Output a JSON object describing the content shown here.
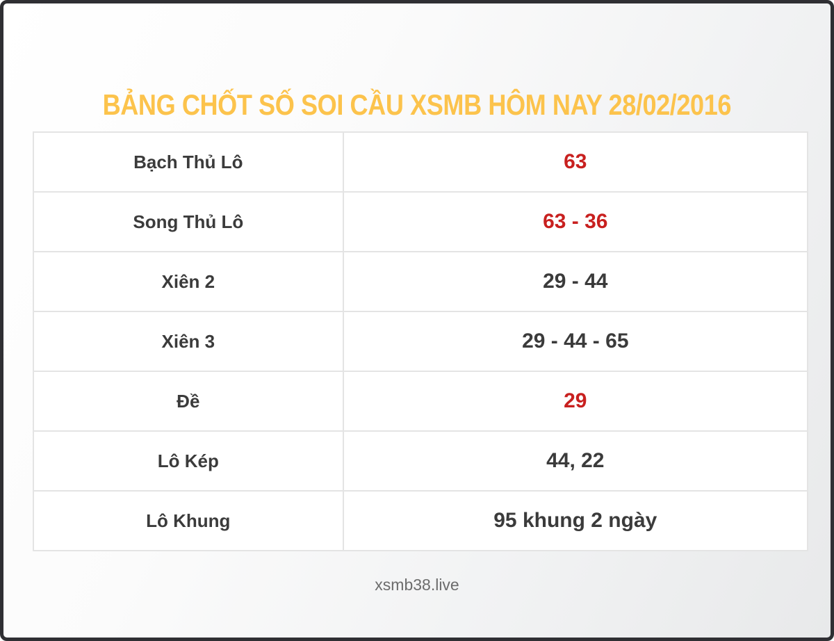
{
  "page": {
    "title": "BẢNG CHỐT SỐ SOI CẦU XSMB HÔM NAY 28/02/2016",
    "footer": "xsmb38.live"
  },
  "colors": {
    "title": "#fcc34c",
    "value_highlight": "#c8201f",
    "text_dark": "#3b3b3b",
    "table_border": "#e4e4e4",
    "frame_border": "#2f2f33"
  },
  "table": {
    "rows": [
      {
        "label": "Bạch Thủ Lô",
        "value": "63",
        "highlight": true
      },
      {
        "label": "Song Thủ Lô",
        "value": "63 - 36",
        "highlight": true
      },
      {
        "label": "Xiên 2",
        "value": "29 - 44",
        "highlight": false
      },
      {
        "label": "Xiên 3",
        "value": "29 - 44 - 65",
        "highlight": false
      },
      {
        "label": "Đề",
        "value": "29",
        "highlight": true
      },
      {
        "label": "Lô Kép",
        "value": "44, 22",
        "highlight": false
      },
      {
        "label": "Lô Khung",
        "value": "95 khung 2 ngày",
        "highlight": false
      }
    ]
  }
}
